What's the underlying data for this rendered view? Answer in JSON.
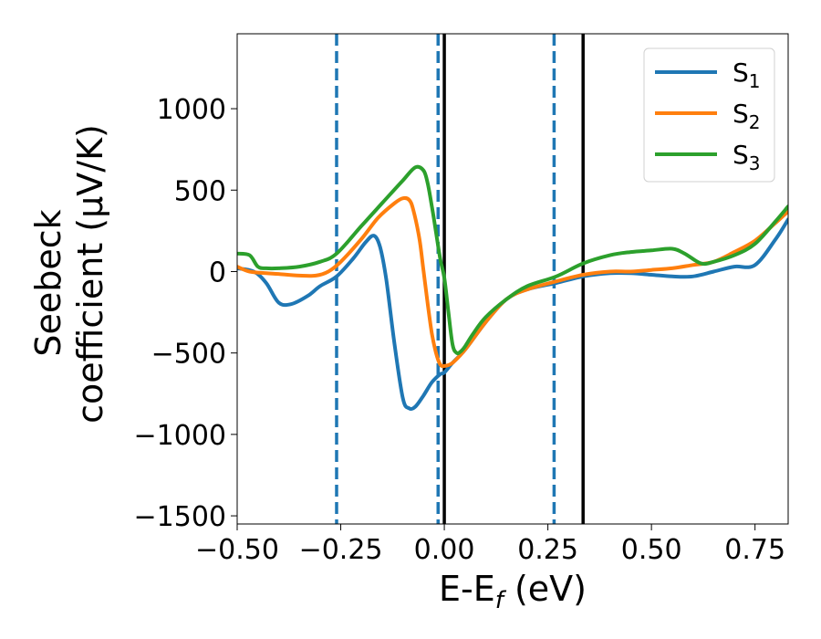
{
  "chart_data": {
    "type": "line",
    "xlabel": {
      "main": "E-E",
      "sub": "f",
      "tail": " (eV)"
    },
    "ylabel_lines": [
      "Seebeck",
      "coefficient  (μV/K)"
    ],
    "xlim": [
      -0.5,
      0.83
    ],
    "ylim": [
      -1550,
      1460
    ],
    "xticks": [
      -0.5,
      -0.25,
      0.0,
      0.25,
      0.5,
      0.75
    ],
    "xtick_labels": [
      "−0.50",
      "−0.25",
      "0.00",
      "0.25",
      "0.50",
      "0.75"
    ],
    "yticks": [
      -1500,
      -1000,
      -500,
      0,
      500,
      1000
    ],
    "ytick_labels": [
      "−1500",
      "−1000",
      "−500",
      "0",
      "500",
      "1000"
    ],
    "legend_position": "upper-right",
    "vlines": [
      {
        "x": -0.26,
        "style": "dashed",
        "color": "#1f77b4"
      },
      {
        "x": -0.015,
        "style": "dashed",
        "color": "#1f77b4"
      },
      {
        "x": 0.265,
        "style": "dashed",
        "color": "#1f77b4"
      },
      {
        "x": 0.0,
        "style": "solid",
        "color": "#000000"
      },
      {
        "x": 0.335,
        "style": "solid",
        "color": "#000000"
      }
    ],
    "series": [
      {
        "name": "S",
        "sub": "1",
        "color": "#1f77b4",
        "x": [
          -0.5,
          -0.46,
          -0.43,
          -0.4,
          -0.37,
          -0.33,
          -0.3,
          -0.26,
          -0.22,
          -0.19,
          -0.17,
          -0.155,
          -0.14,
          -0.12,
          -0.1,
          -0.085,
          -0.07,
          -0.05,
          -0.03,
          -0.01,
          0.0,
          0.02,
          0.05,
          0.1,
          0.15,
          0.2,
          0.27,
          0.335,
          0.4,
          0.45,
          0.5,
          0.55,
          0.6,
          0.65,
          0.7,
          0.75,
          0.8,
          0.83
        ],
        "y": [
          20,
          0,
          -70,
          -190,
          -200,
          -150,
          -90,
          -30,
          80,
          180,
          220,
          150,
          -50,
          -450,
          -780,
          -840,
          -830,
          -760,
          -680,
          -630,
          -620,
          -560,
          -480,
          -310,
          -170,
          -110,
          -70,
          -30,
          -10,
          -10,
          -20,
          -30,
          -30,
          0,
          30,
          40,
          200,
          320
        ]
      },
      {
        "name": "S",
        "sub": "2",
        "color": "#ff7f0e",
        "x": [
          -0.5,
          -0.47,
          -0.43,
          -0.4,
          -0.35,
          -0.31,
          -0.28,
          -0.25,
          -0.2,
          -0.16,
          -0.12,
          -0.1,
          -0.085,
          -0.075,
          -0.06,
          -0.05,
          -0.04,
          -0.03,
          -0.02,
          -0.01,
          0.0,
          0.02,
          0.05,
          0.1,
          0.15,
          0.2,
          0.27,
          0.335,
          0.4,
          0.45,
          0.5,
          0.55,
          0.6,
          0.65,
          0.7,
          0.75,
          0.8,
          0.83
        ],
        "y": [
          30,
          0,
          -10,
          -15,
          -25,
          -25,
          0,
          60,
          200,
          330,
          420,
          450,
          440,
          380,
          200,
          0,
          -200,
          -380,
          -500,
          -570,
          -580,
          -560,
          -480,
          -310,
          -170,
          -110,
          -60,
          -20,
          0,
          0,
          10,
          20,
          40,
          60,
          120,
          190,
          300,
          370
        ]
      },
      {
        "name": "S",
        "sub": "3",
        "color": "#2ca02c",
        "x": [
          -0.5,
          -0.47,
          -0.45,
          -0.43,
          -0.4,
          -0.35,
          -0.3,
          -0.26,
          -0.2,
          -0.15,
          -0.1,
          -0.07,
          -0.05,
          -0.04,
          -0.03,
          -0.02,
          -0.01,
          0.0,
          0.01,
          0.02,
          0.03,
          0.04,
          0.05,
          0.07,
          0.1,
          0.15,
          0.2,
          0.27,
          0.335,
          0.4,
          0.45,
          0.5,
          0.55,
          0.58,
          0.62,
          0.65,
          0.7,
          0.75,
          0.8,
          0.83
        ],
        "y": [
          110,
          100,
          30,
          20,
          20,
          30,
          60,
          110,
          280,
          420,
          560,
          640,
          620,
          540,
          400,
          240,
          80,
          -40,
          -250,
          -450,
          -500,
          -490,
          -460,
          -380,
          -280,
          -170,
          -90,
          -30,
          50,
          100,
          120,
          130,
          140,
          110,
          50,
          60,
          100,
          170,
          310,
          400
        ]
      }
    ]
  }
}
